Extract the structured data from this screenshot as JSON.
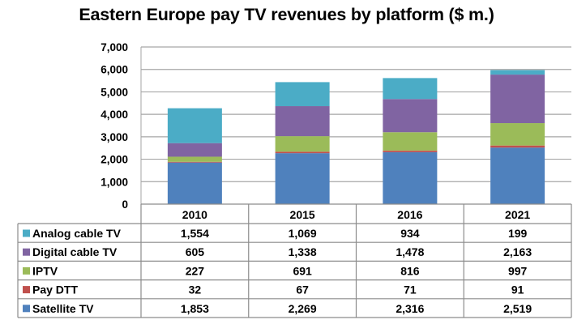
{
  "chart_data": {
    "type": "bar",
    "stacked": true,
    "title": "Eastern Europe pay TV revenues by platform ($ m.)",
    "xlabel": "",
    "ylabel": "",
    "ylim": [
      0,
      7000
    ],
    "yticks": [
      0,
      1000,
      2000,
      3000,
      4000,
      5000,
      6000,
      7000
    ],
    "ytick_labels": [
      "0",
      "1,000",
      "2,000",
      "3,000",
      "4,000",
      "5,000",
      "6,000",
      "7,000"
    ],
    "grid": true,
    "legend_placement": "data-table-left",
    "categories": [
      "2010",
      "2015",
      "2016",
      "2021"
    ],
    "series": [
      {
        "name": "Satellite TV",
        "color": "#4F81BD",
        "values": [
          1853,
          2269,
          2316,
          2519
        ],
        "labels": [
          "1,853",
          "2,269",
          "2,316",
          "2,519"
        ]
      },
      {
        "name": "Pay DTT",
        "color": "#C0504D",
        "values": [
          32,
          67,
          71,
          91
        ],
        "labels": [
          "32",
          "67",
          "71",
          "91"
        ]
      },
      {
        "name": "IPTV",
        "color": "#9BBB59",
        "values": [
          227,
          691,
          816,
          997
        ],
        "labels": [
          "227",
          "691",
          "816",
          "997"
        ]
      },
      {
        "name": "Digital cable TV",
        "color": "#8064A2",
        "values": [
          605,
          1338,
          1478,
          2163
        ],
        "labels": [
          "605",
          "1,338",
          "1,478",
          "2,163"
        ]
      },
      {
        "name": "Analog cable TV",
        "color": "#4BACC6",
        "values": [
          1554,
          1069,
          934,
          199
        ],
        "labels": [
          "1,554",
          "1,069",
          "934",
          "199"
        ]
      }
    ],
    "table_row_order": [
      "Analog cable TV",
      "Digital cable TV",
      "IPTV",
      "Pay DTT",
      "Satellite TV"
    ]
  }
}
